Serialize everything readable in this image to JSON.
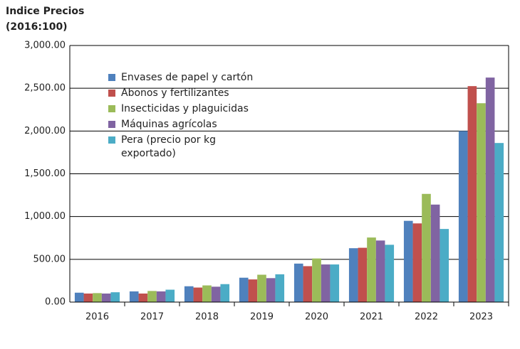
{
  "chart_data": {
    "type": "bar",
    "title": "Indice Precios",
    "subtitle": "(2016:100)",
    "categories": [
      "2016",
      "2017",
      "2018",
      "2019",
      "2020",
      "2021",
      "2022",
      "2023"
    ],
    "series": [
      {
        "name": "Envases de papel y cartón",
        "color": "#4f81bd",
        "values": [
          110,
          125,
          185,
          285,
          450,
          630,
          950,
          2000
        ]
      },
      {
        "name": "Abonos y fertilizantes",
        "color": "#c0504d",
        "values": [
          100,
          100,
          170,
          265,
          420,
          635,
          920,
          2525
        ]
      },
      {
        "name": "Insecticidas y plaguicidas",
        "color": "#9bbb59",
        "values": [
          105,
          130,
          195,
          320,
          510,
          755,
          1265,
          2325
        ]
      },
      {
        "name": "Máquinas agrícolas",
        "color": "#8064a2",
        "values": [
          100,
          125,
          180,
          280,
          440,
          720,
          1140,
          2625
        ]
      },
      {
        "name": "Pera (precio por kg exportado)",
        "color": "#4bacc6",
        "values": [
          115,
          145,
          210,
          325,
          440,
          670,
          855,
          1860
        ]
      }
    ],
    "ylim": [
      0,
      3000
    ],
    "yticks": [
      {
        "value": 0,
        "label": "0.00"
      },
      {
        "value": 500,
        "label": "500.00"
      },
      {
        "value": 1000,
        "label": "1,000.00"
      },
      {
        "value": 1500,
        "label": "1,500.00"
      },
      {
        "value": 2000,
        "label": "2,000.00"
      },
      {
        "value": 2500,
        "label": "2,500.00"
      },
      {
        "value": 3000,
        "label": "3,000.00"
      }
    ],
    "grid": true
  }
}
